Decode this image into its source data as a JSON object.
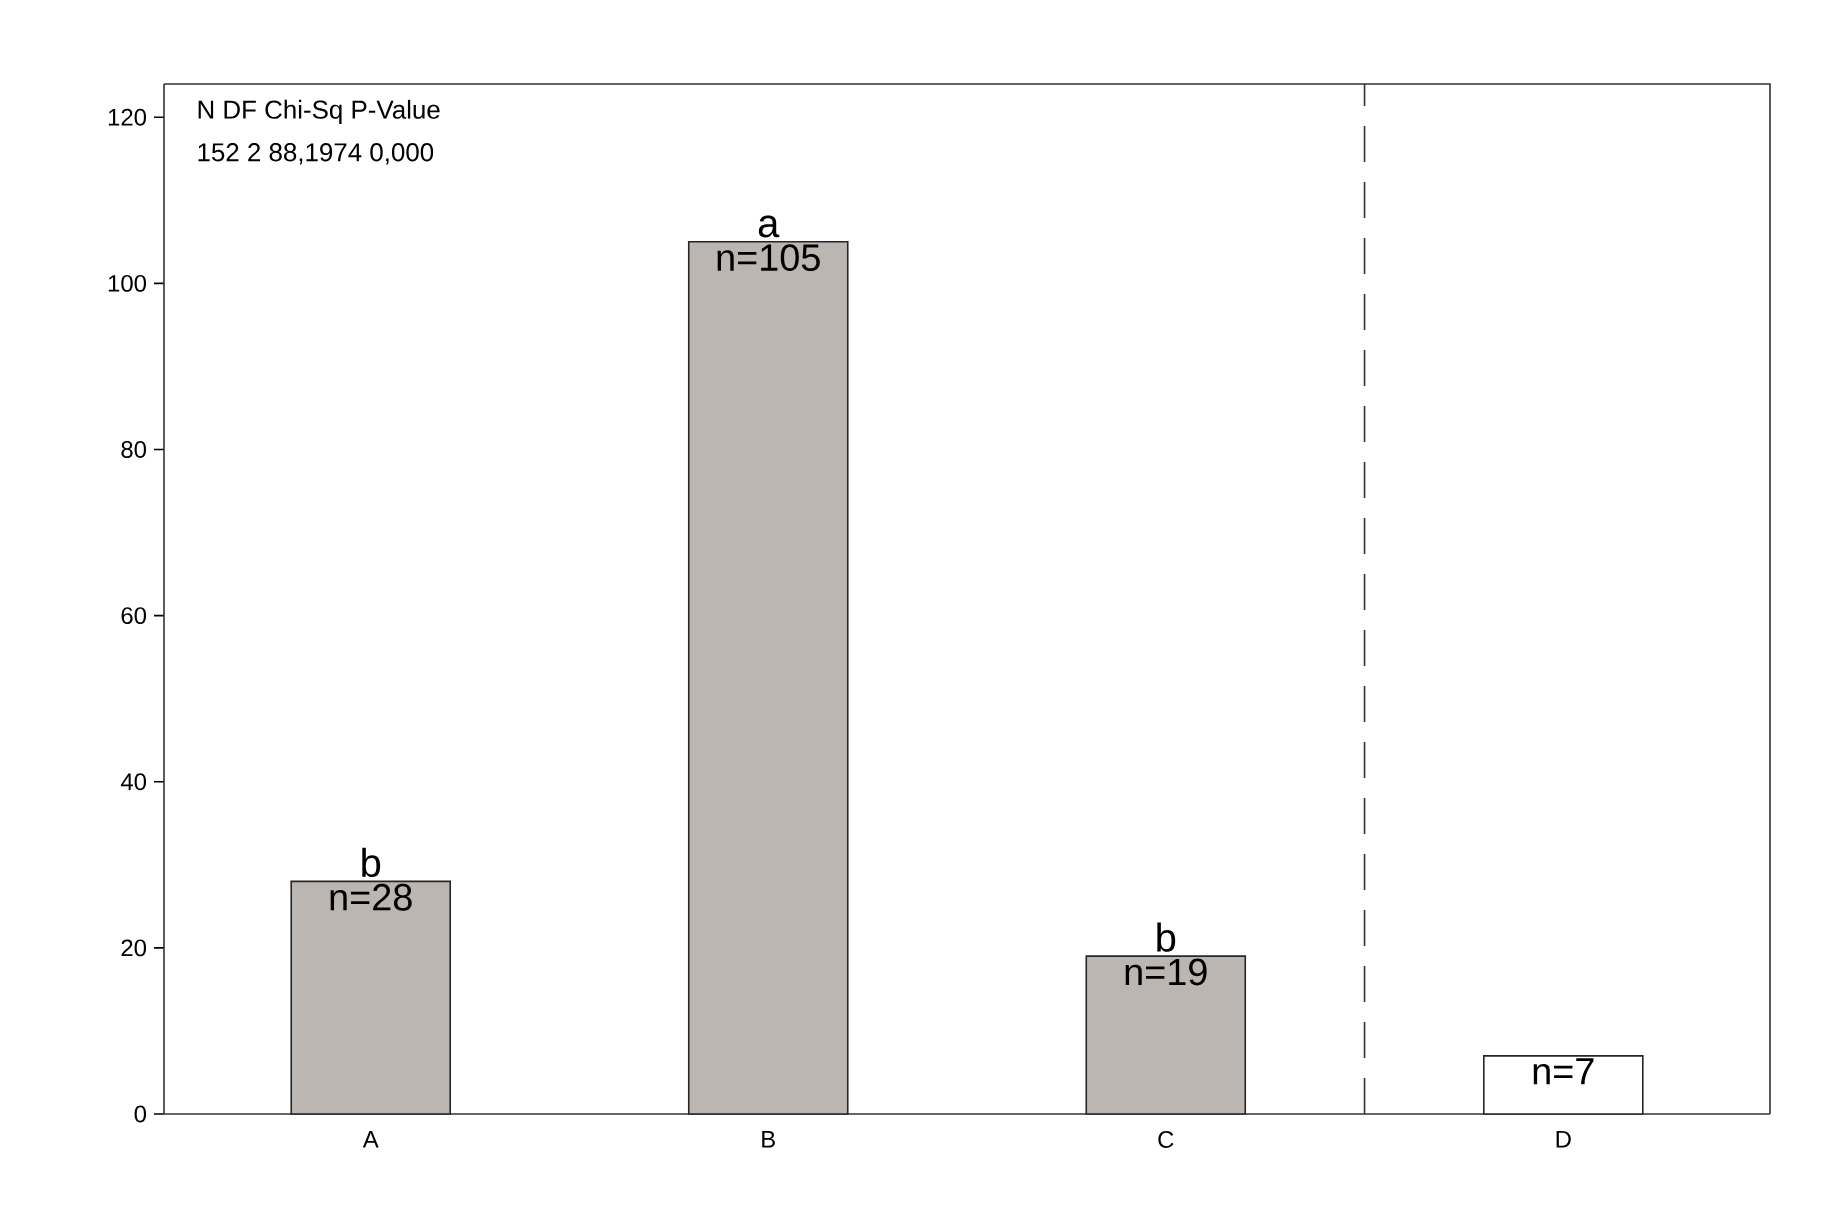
{
  "chart_data": {
    "type": "bar",
    "categories": [
      "A",
      "B",
      "C",
      "D"
    ],
    "values": [
      28,
      105,
      19,
      7
    ],
    "colors": [
      "#bbb6b2",
      "#bbb6b2",
      "#bbb6b2",
      "#ffffff"
    ],
    "value_labels": [
      "n=28",
      "n=105",
      "n=19",
      "n=7"
    ],
    "ylim": [
      0,
      124
    ],
    "yticks": [
      0,
      20,
      40,
      60,
      80,
      100,
      120
    ],
    "annotations": [
      "N  DF  Chi-Sq  P-Value",
      "152  2  88,1974  0,000",
      {
        "text": "b",
        "x": "A",
        "y": 28
      },
      {
        "text": "a",
        "x": "B",
        "y": 105
      },
      {
        "text": "b",
        "x": "C",
        "y": 19
      }
    ],
    "grid": false
  }
}
